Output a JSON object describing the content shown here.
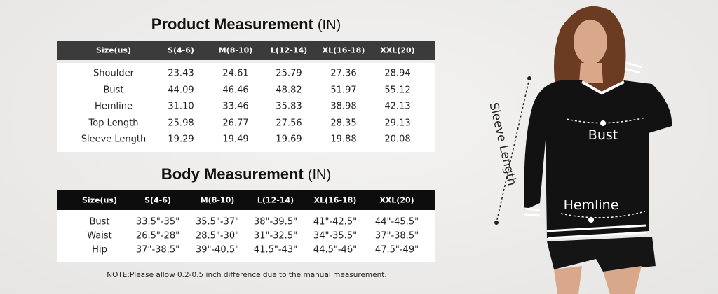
{
  "product_table": {
    "title": "Product Measurement",
    "unit": "(IN)",
    "header": [
      "Size(us)",
      "S(4-6)",
      "M(8-10)",
      "L(12-14)",
      "XL(16-18)",
      "XXL(20)"
    ],
    "rows": [
      [
        "Shoulder",
        "23.43",
        "24.61",
        "25.79",
        "27.36",
        "28.94"
      ],
      [
        "Bust",
        "44.09",
        "46.46",
        "48.82",
        "51.97",
        "55.12"
      ],
      [
        "Hemline",
        "31.10",
        "33.46",
        "35.83",
        "38.98",
        "42.13"
      ],
      [
        "Top Length",
        "25.98",
        "26.77",
        "27.56",
        "28.35",
        "29.13"
      ],
      [
        "Sleeve Length",
        "19.29",
        "19.49",
        "19.69",
        "19.88",
        "20.08"
      ]
    ]
  },
  "body_table": {
    "title": "Body Measurement",
    "unit": "(IN)",
    "header": [
      "Size(us)",
      "S(4-6)",
      "M(8-10)",
      "L(12-14)",
      "XL(16-18)",
      "XXL(20)"
    ],
    "rows": [
      [
        "Bust",
        "33.5\"-35\"",
        "35.5\"-37\"",
        "38\"-39.5\"",
        "41\"-42.5\"",
        "44\"-45.5\""
      ],
      [
        "Waist",
        "26.5\"-28\"",
        "28.5\"-30\"",
        "31\"-32.5\"",
        "34\"-35.5\"",
        "37\"-38.5\""
      ],
      [
        "Hip",
        "37\"-38.5\"",
        "39\"-40.5\"",
        "41.5\"-43\"",
        "44.5\"-46\"",
        "47.5\"-49\""
      ]
    ]
  },
  "note": "NOTE:Please allow 0.2-0.5 inch difference due to the manual measurement.",
  "figure_labels": {
    "sleeve": "Sleeve Length",
    "bust": "Bust",
    "hemline": "Hemline"
  }
}
